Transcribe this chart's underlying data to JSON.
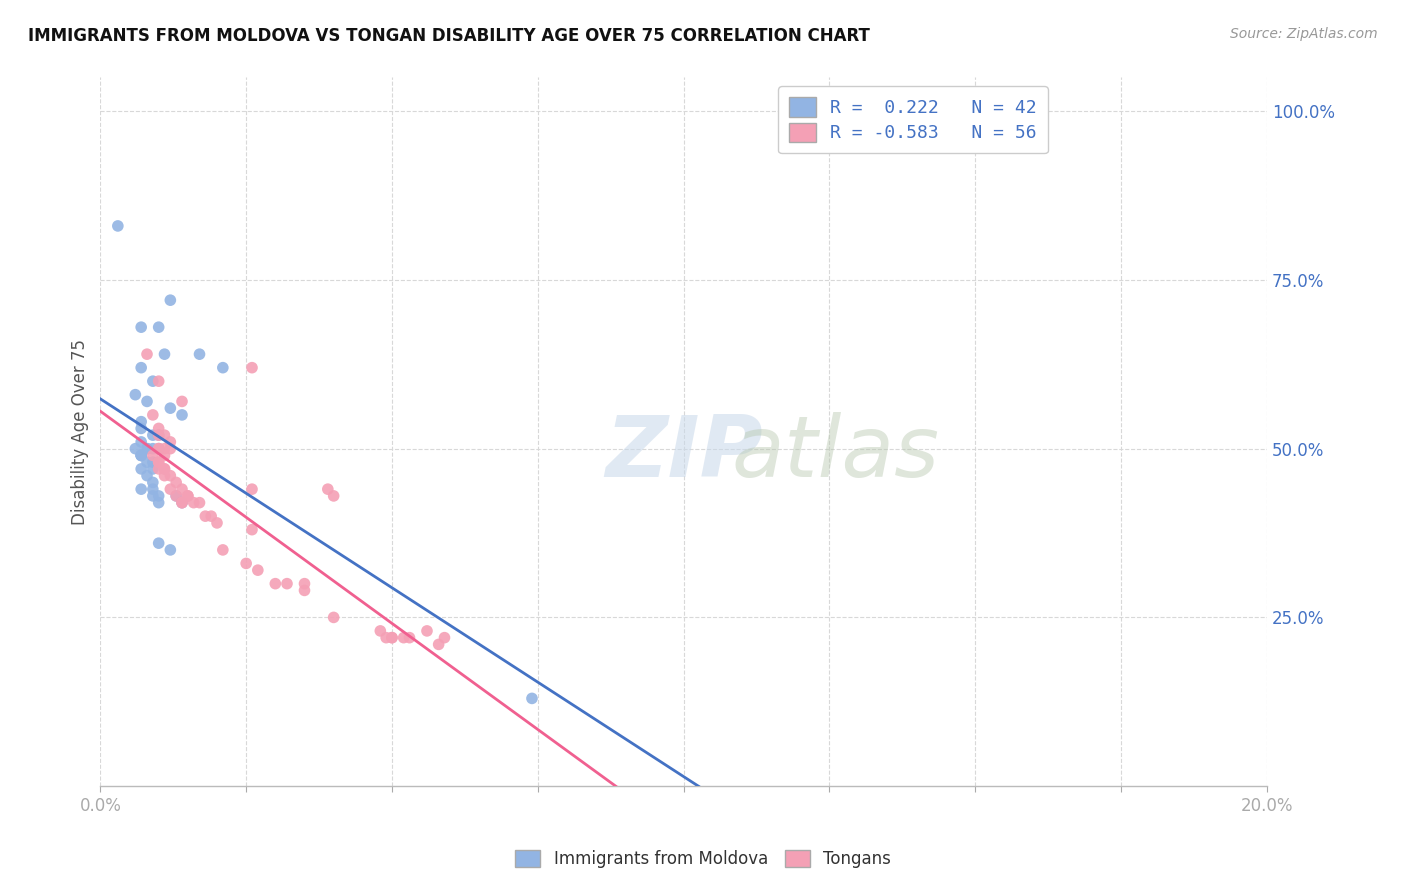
{
  "title": "IMMIGRANTS FROM MOLDOVA VS TONGAN DISABILITY AGE OVER 75 CORRELATION CHART",
  "source": "Source: ZipAtlas.com",
  "ylabel": "Disability Age Over 75",
  "r_moldova": 0.222,
  "n_moldova": 42,
  "r_tongan": -0.583,
  "n_tongan": 56,
  "moldova_color": "#92b4e3",
  "tongan_color": "#f4a0b5",
  "moldova_line_color": "#4472c4",
  "tongan_line_color": "#f06090",
  "moldova_scatter": [
    [
      0.003,
      0.83
    ],
    [
      0.007,
      0.68
    ],
    [
      0.012,
      0.72
    ],
    [
      0.007,
      0.62
    ],
    [
      0.01,
      0.68
    ],
    [
      0.011,
      0.64
    ],
    [
      0.017,
      0.64
    ],
    [
      0.021,
      0.62
    ],
    [
      0.006,
      0.58
    ],
    [
      0.009,
      0.6
    ],
    [
      0.008,
      0.57
    ],
    [
      0.012,
      0.56
    ],
    [
      0.014,
      0.55
    ],
    [
      0.007,
      0.54
    ],
    [
      0.007,
      0.53
    ],
    [
      0.009,
      0.52
    ],
    [
      0.007,
      0.51
    ],
    [
      0.01,
      0.52
    ],
    [
      0.008,
      0.5
    ],
    [
      0.009,
      0.5
    ],
    [
      0.006,
      0.5
    ],
    [
      0.008,
      0.5
    ],
    [
      0.01,
      0.5
    ],
    [
      0.007,
      0.49
    ],
    [
      0.007,
      0.49
    ],
    [
      0.007,
      0.49
    ],
    [
      0.009,
      0.48
    ],
    [
      0.008,
      0.48
    ],
    [
      0.009,
      0.47
    ],
    [
      0.007,
      0.47
    ],
    [
      0.008,
      0.46
    ],
    [
      0.009,
      0.45
    ],
    [
      0.009,
      0.44
    ],
    [
      0.007,
      0.44
    ],
    [
      0.01,
      0.43
    ],
    [
      0.009,
      0.43
    ],
    [
      0.013,
      0.43
    ],
    [
      0.01,
      0.42
    ],
    [
      0.012,
      0.35
    ],
    [
      0.01,
      0.36
    ],
    [
      0.014,
      0.42
    ],
    [
      0.074,
      0.13
    ]
  ],
  "tongan_scatter": [
    [
      0.008,
      0.64
    ],
    [
      0.026,
      0.62
    ],
    [
      0.01,
      0.6
    ],
    [
      0.014,
      0.57
    ],
    [
      0.009,
      0.55
    ],
    [
      0.01,
      0.53
    ],
    [
      0.011,
      0.52
    ],
    [
      0.01,
      0.52
    ],
    [
      0.012,
      0.51
    ],
    [
      0.01,
      0.5
    ],
    [
      0.011,
      0.5
    ],
    [
      0.01,
      0.5
    ],
    [
      0.012,
      0.5
    ],
    [
      0.009,
      0.49
    ],
    [
      0.011,
      0.49
    ],
    [
      0.01,
      0.48
    ],
    [
      0.01,
      0.48
    ],
    [
      0.011,
      0.47
    ],
    [
      0.01,
      0.47
    ],
    [
      0.011,
      0.47
    ],
    [
      0.012,
      0.46
    ],
    [
      0.011,
      0.46
    ],
    [
      0.013,
      0.45
    ],
    [
      0.012,
      0.44
    ],
    [
      0.014,
      0.44
    ],
    [
      0.013,
      0.43
    ],
    [
      0.015,
      0.43
    ],
    [
      0.014,
      0.42
    ],
    [
      0.016,
      0.42
    ],
    [
      0.014,
      0.42
    ],
    [
      0.015,
      0.43
    ],
    [
      0.017,
      0.42
    ],
    [
      0.018,
      0.4
    ],
    [
      0.019,
      0.4
    ],
    [
      0.02,
      0.39
    ],
    [
      0.021,
      0.35
    ],
    [
      0.025,
      0.33
    ],
    [
      0.027,
      0.32
    ],
    [
      0.03,
      0.3
    ],
    [
      0.032,
      0.3
    ],
    [
      0.035,
      0.29
    ],
    [
      0.035,
      0.3
    ],
    [
      0.04,
      0.25
    ],
    [
      0.048,
      0.23
    ],
    [
      0.049,
      0.22
    ],
    [
      0.05,
      0.22
    ],
    [
      0.05,
      0.22
    ],
    [
      0.052,
      0.22
    ],
    [
      0.053,
      0.22
    ],
    [
      0.056,
      0.23
    ],
    [
      0.058,
      0.21
    ],
    [
      0.026,
      0.44
    ],
    [
      0.026,
      0.38
    ],
    [
      0.039,
      0.44
    ],
    [
      0.04,
      0.43
    ],
    [
      0.059,
      0.22
    ]
  ],
  "xlim": [
    0.0,
    0.2
  ],
  "ylim": [
    0.0,
    1.05
  ],
  "ytick_vals": [
    1.0,
    0.75,
    0.5,
    0.25
  ],
  "ytick_labels": [
    "100.0%",
    "75.0%",
    "50.0%",
    "25.0%"
  ],
  "background_color": "#ffffff",
  "grid_color": "#d8d8d8"
}
